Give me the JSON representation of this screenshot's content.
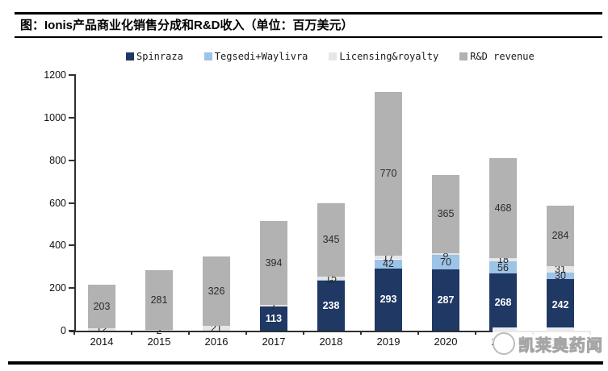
{
  "header": {
    "title": "图：Ionis产品商业化销售分成和R&D收入（单位：百万美元）"
  },
  "watermark": {
    "text": "凯莱奥药闻"
  },
  "chart_data": {
    "type": "bar",
    "stacked": true,
    "title": "",
    "xlabel": "",
    "ylabel": "",
    "unit": "百万美元",
    "grid": false,
    "legend_position": "top",
    "ylim": [
      0,
      1200
    ],
    "yticks": [
      0,
      200,
      400,
      600,
      800,
      1000,
      1200
    ],
    "categories": [
      "2014",
      "2015",
      "2016",
      "2017",
      "2018",
      "2019",
      "2020",
      "2021",
      "2022"
    ],
    "series": [
      {
        "name": "Spinraza",
        "color": "#1F3864",
        "values": [
          0,
          0,
          0,
          113,
          238,
          293,
          287,
          268,
          242
        ]
      },
      {
        "name": "Tegsedi+Waylivra",
        "color": "#9DC3E6",
        "values": [
          0,
          0,
          0,
          0,
          2,
          42,
          70,
          56,
          30
        ]
      },
      {
        "name": "Licensing&royalty",
        "color": "#E6E6E6",
        "values": [
          12,
          2,
          21,
          7,
          15,
          17,
          8,
          18,
          31
        ]
      },
      {
        "name": "R&D revenue",
        "color": "#B2B2B2",
        "values": [
          203,
          281,
          326,
          394,
          345,
          770,
          365,
          468,
          284
        ]
      }
    ],
    "totals": [
      215,
      283,
      347,
      514,
      600,
      1122,
      730,
      810,
      587
    ]
  }
}
